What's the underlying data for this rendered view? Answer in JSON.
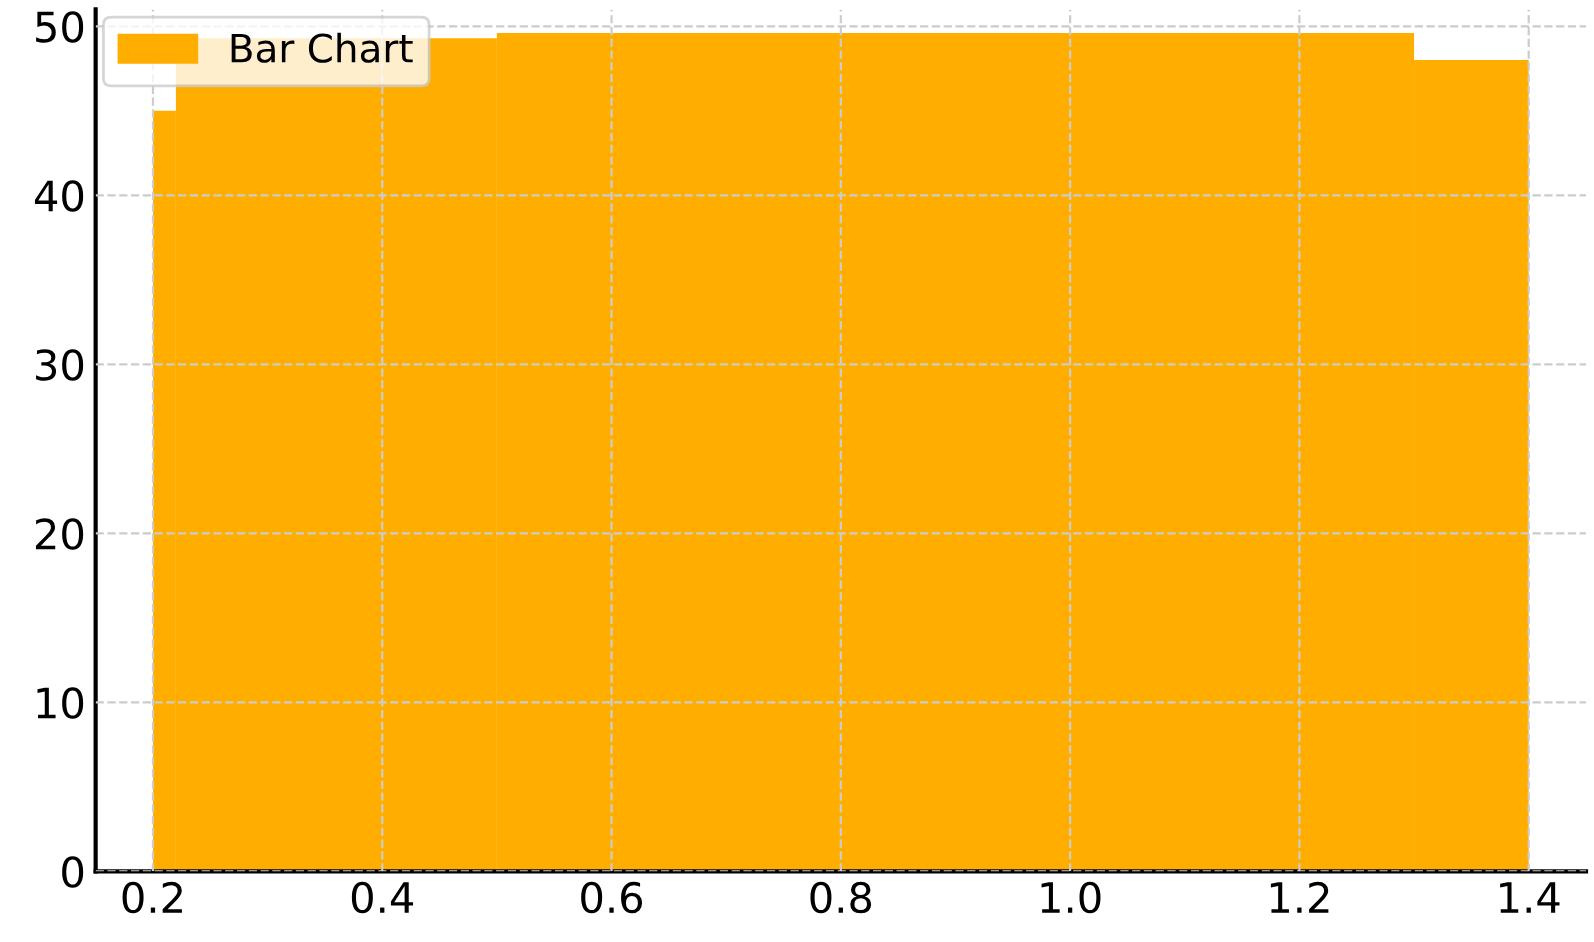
{
  "chart_data": {
    "type": "histogram",
    "bins": [
      0.2,
      0.22,
      0.5,
      1.3,
      1.4
    ],
    "series": [
      {
        "name": "Bar Chart",
        "color": "#ffae00",
        "values": [
          45,
          49.3,
          49.6,
          48
        ]
      }
    ],
    "xlim": [
      0.15,
      1.45
    ],
    "xticks": [
      0.2,
      0.4,
      0.6,
      0.8,
      {
        "value": 1,
        "label": "1.0"
      },
      1.2,
      1.4
    ],
    "ylim": [
      0,
      51
    ],
    "yticks": [
      0,
      10,
      20,
      30,
      40,
      50
    ],
    "grid": true,
    "legend": "top left"
  }
}
